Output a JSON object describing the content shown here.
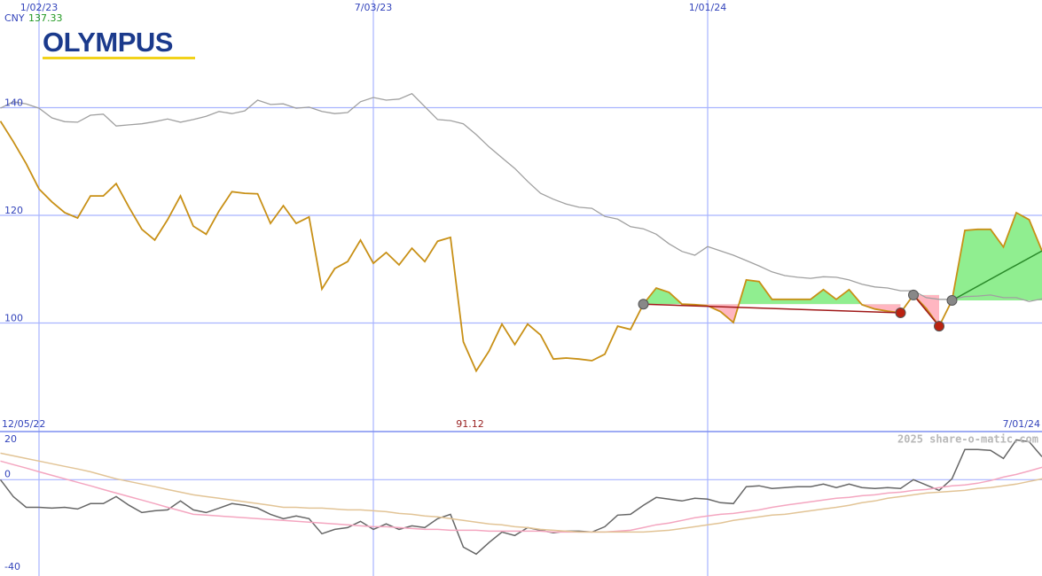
{
  "header": {
    "logo": "OLYMPUS",
    "currency": "CNY",
    "price": 137.33,
    "watermark": "2025 share-o-matic.com"
  },
  "chart_data": {
    "type": "line",
    "annotation": "91.12",
    "categories": [
      "12/05/22",
      null,
      null,
      "1/02/23",
      null,
      null,
      null,
      null,
      null,
      null,
      null,
      null,
      null,
      null,
      null,
      null,
      null,
      null,
      null,
      null,
      null,
      null,
      null,
      null,
      null,
      null,
      null,
      null,
      null,
      "7/03/23",
      null,
      null,
      null,
      null,
      null,
      null,
      null,
      null,
      null,
      null,
      null,
      null,
      null,
      null,
      null,
      null,
      null,
      null,
      null,
      null,
      null,
      null,
      null,
      null,
      null,
      "1/01/24",
      null,
      null,
      null,
      null,
      null,
      null,
      null,
      null,
      null,
      null,
      null,
      null,
      null,
      null,
      null,
      null,
      null,
      null,
      null,
      null,
      null,
      null,
      null,
      null,
      null,
      "7/01/24"
    ],
    "ylim": [
      80,
      160
    ],
    "yticks": [
      140,
      120,
      100
    ],
    "fill_up": "#90ee90",
    "fill_down": "#ffb6c1",
    "trend_up": "#2a8a2a",
    "trend_down": "#a01818",
    "series": [
      {
        "color": "#c89016",
        "values": [
          137.5,
          133.7,
          129.6,
          124.9,
          122.5,
          120.5,
          119.5,
          123.6,
          123.6,
          125.9,
          121.5,
          117.4,
          115.4,
          119.2,
          123.6,
          118.0,
          116.5,
          120.8,
          124.4,
          124.1,
          124.0,
          118.5,
          121.8,
          118.5,
          119.7,
          106.3,
          110.1,
          111.4,
          115.4,
          111.1,
          113.1,
          110.8,
          113.9,
          111.4,
          115.2,
          115.9,
          96.5,
          91.1,
          94.8,
          99.8,
          96.0,
          99.8,
          97.8,
          93.3,
          93.5,
          93.3,
          93.0,
          94.2,
          99.4,
          98.8,
          103.5,
          106.5,
          105.7,
          103.5,
          103.4,
          103.2,
          102.1,
          100.1,
          108.0,
          107.7,
          104.4,
          104.4,
          104.4,
          104.4,
          106.2,
          104.4,
          106.2,
          103.4,
          102.6,
          102.2,
          101.9,
          105.2,
          102.7,
          99.4,
          104.2,
          117.2,
          117.4,
          117.4,
          114.1,
          120.5,
          119.2,
          113.4
        ]
      },
      {
        "color": "#a0a0a0",
        "values": [
          139.9,
          141.1,
          140.7,
          139.9,
          138.1,
          137.4,
          137.3,
          138.6,
          138.8,
          136.6,
          136.8,
          137.0,
          137.4,
          137.9,
          137.3,
          137.8,
          138.4,
          139.3,
          138.9,
          139.4,
          141.4,
          140.6,
          140.7,
          139.9,
          140.1,
          139.3,
          138.9,
          139.1,
          141.1,
          141.9,
          141.4,
          141.6,
          142.6,
          140.2,
          137.8,
          137.6,
          137.0,
          135.0,
          132.7,
          130.7,
          128.7,
          126.3,
          124.1,
          123.0,
          122.1,
          121.5,
          121.3,
          119.8,
          119.3,
          117.9,
          117.5,
          116.5,
          114.7,
          113.3,
          112.6,
          114.2,
          113.4,
          112.6,
          111.6,
          110.6,
          109.5,
          108.8,
          108.5,
          108.3,
          108.6,
          108.5,
          108.0,
          107.2,
          106.7,
          106.5,
          106.0,
          106.0,
          104.7,
          104.4,
          104.4,
          104.9,
          105.0,
          105.2,
          104.7,
          104.7,
          104.0,
          104.5
        ]
      }
    ],
    "pivots_high": {
      "color": "#888888",
      "values": [
        null,
        null,
        null,
        null,
        null,
        null,
        null,
        null,
        null,
        null,
        null,
        null,
        null,
        null,
        null,
        null,
        null,
        null,
        null,
        null,
        null,
        null,
        null,
        null,
        null,
        null,
        null,
        null,
        null,
        null,
        null,
        null,
        null,
        null,
        null,
        null,
        null,
        null,
        null,
        null,
        null,
        null,
        null,
        null,
        null,
        null,
        null,
        null,
        null,
        null,
        103.5,
        null,
        null,
        null,
        null,
        null,
        null,
        null,
        null,
        null,
        null,
        null,
        null,
        null,
        null,
        null,
        null,
        null,
        null,
        null,
        null,
        105.2,
        null,
        null,
        104.2,
        null,
        null,
        null,
        null,
        null,
        null,
        null
      ]
    },
    "pivots_low": {
      "color": "#bb2211",
      "values": [
        null,
        null,
        null,
        null,
        null,
        null,
        null,
        null,
        null,
        null,
        null,
        null,
        null,
        null,
        null,
        null,
        null,
        null,
        null,
        null,
        null,
        null,
        null,
        null,
        null,
        null,
        null,
        null,
        null,
        null,
        null,
        null,
        null,
        null,
        null,
        null,
        null,
        null,
        null,
        null,
        null,
        null,
        null,
        null,
        null,
        null,
        null,
        null,
        null,
        null,
        null,
        null,
        null,
        null,
        null,
        null,
        null,
        null,
        null,
        null,
        null,
        null,
        null,
        null,
        null,
        null,
        null,
        null,
        null,
        null,
        101.9,
        null,
        null,
        99.4,
        null,
        null,
        null,
        null,
        null,
        null,
        null,
        null
      ]
    },
    "lower": {
      "ylim": [
        -44,
        22
      ],
      "yticks": [
        20,
        0,
        -40
      ],
      "series": [
        {
          "color": "#666666",
          "values": [
            0,
            -7.7,
            -12.6,
            -12.6,
            -13.0,
            -12.6,
            -13.4,
            -10.9,
            -10.9,
            -7.7,
            -11.7,
            -15.0,
            -14.2,
            -13.8,
            -9.7,
            -13.8,
            -15.0,
            -13.0,
            -10.9,
            -11.7,
            -13.0,
            -15.8,
            -17.8,
            -16.6,
            -17.8,
            -24.7,
            -22.7,
            -21.9,
            -19.0,
            -22.7,
            -20.2,
            -22.7,
            -21.1,
            -21.9,
            -17.8,
            -15.8,
            -30.8,
            -34.0,
            -28.7,
            -23.9,
            -25.5,
            -21.9,
            -23.1,
            -24.3,
            -23.5,
            -23.5,
            -23.9,
            -21.5,
            -16.2,
            -15.8,
            -11.7,
            -8.1,
            -8.9,
            -9.7,
            -8.5,
            -8.9,
            -10.5,
            -10.9,
            -3.2,
            -2.8,
            -4.0,
            -3.6,
            -3.2,
            -3.2,
            -2.0,
            -3.6,
            -2.0,
            -3.6,
            -4.0,
            -3.6,
            -4.0,
            0,
            -2.4,
            -4.9,
            0.4,
            13.8,
            13.8,
            13.4,
            9.7,
            18.2,
            17.4,
            10.5
          ]
        },
        {
          "color": "#f4a6c0",
          "values": [
            8.5,
            6.9,
            5.3,
            3.6,
            2.0,
            0.4,
            -1.2,
            -2.8,
            -4.5,
            -6.1,
            -7.7,
            -9.3,
            -10.9,
            -12.6,
            -14.2,
            -15.8,
            -16.2,
            -16.6,
            -17.0,
            -17.4,
            -17.8,
            -18.2,
            -18.6,
            -19.0,
            -19.4,
            -19.8,
            -20.2,
            -20.6,
            -21.1,
            -21.5,
            -21.5,
            -21.9,
            -22.3,
            -22.7,
            -22.7,
            -23.1,
            -23.1,
            -23.1,
            -23.5,
            -23.5,
            -23.5,
            -23.5,
            -23.5,
            -23.9,
            -23.9,
            -23.9,
            -23.9,
            -23.9,
            -23.5,
            -23.1,
            -21.9,
            -20.6,
            -19.8,
            -18.6,
            -17.4,
            -16.6,
            -15.8,
            -15.4,
            -14.6,
            -13.8,
            -12.6,
            -11.7,
            -10.9,
            -10.1,
            -9.3,
            -8.5,
            -8.1,
            -7.3,
            -6.9,
            -6.1,
            -5.7,
            -4.9,
            -4.5,
            -3.6,
            -2.8,
            -2.4,
            -1.6,
            -0.4,
            1.2,
            2.4,
            4.0,
            5.7
          ]
        },
        {
          "color": "#e2c496",
          "values": [
            12.1,
            10.9,
            9.7,
            8.5,
            7.3,
            6.1,
            4.9,
            3.6,
            2.0,
            0.4,
            -0.8,
            -2.0,
            -3.2,
            -4.5,
            -5.7,
            -6.9,
            -7.7,
            -8.5,
            -9.3,
            -10.1,
            -10.9,
            -11.7,
            -12.6,
            -12.6,
            -13.0,
            -13.0,
            -13.4,
            -13.8,
            -13.8,
            -14.2,
            -14.6,
            -15.4,
            -15.8,
            -16.6,
            -17.0,
            -17.8,
            -18.6,
            -19.4,
            -20.2,
            -20.6,
            -21.5,
            -21.9,
            -22.7,
            -23.1,
            -23.5,
            -23.9,
            -23.9,
            -23.9,
            -23.9,
            -23.9,
            -23.9,
            -23.5,
            -23.1,
            -22.3,
            -21.5,
            -20.6,
            -19.8,
            -18.6,
            -17.8,
            -17.0,
            -16.2,
            -15.8,
            -15.0,
            -14.2,
            -13.4,
            -12.6,
            -11.7,
            -10.5,
            -9.7,
            -8.5,
            -7.7,
            -6.9,
            -6.1,
            -5.7,
            -5.3,
            -4.9,
            -4.0,
            -3.6,
            -2.8,
            -2.0,
            -0.8,
            0.4
          ]
        }
      ]
    }
  }
}
